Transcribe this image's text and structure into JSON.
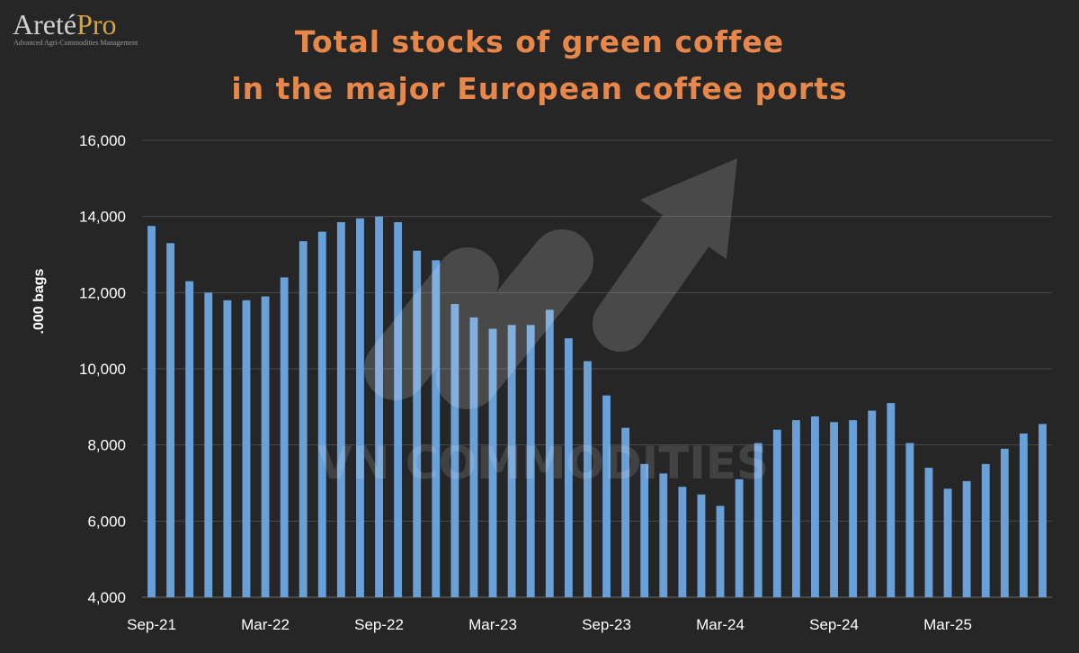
{
  "logo": {
    "brand_main": "Areté",
    "brand_pro": "Pro",
    "tagline": "Advanced Agri-Commodities Management",
    "pro_color": "#d9a441"
  },
  "watermark": {
    "text": "VN COMMODITIES"
  },
  "colors": {
    "background": "#262626",
    "title": "#e8874a",
    "bar": "#6aa0d8",
    "grid": "#4a4a4a"
  },
  "chart_data": {
    "type": "bar",
    "title_lines": [
      "Total stocks of green coffee",
      "in the major European coffee ports"
    ],
    "ylabel": ".000 bags",
    "xlabel": "",
    "ylim": [
      4000,
      16000
    ],
    "yticks": [
      "4,000",
      "6,000",
      "8,000",
      "10,000",
      "12,000",
      "14,000",
      "16,000"
    ],
    "ytick_values": [
      4000,
      6000,
      8000,
      10000,
      12000,
      14000,
      16000
    ],
    "xtick_labels": [
      {
        "label": "Sep-21",
        "index": 0
      },
      {
        "label": "Mar-22",
        "index": 6
      },
      {
        "label": "Sep-22",
        "index": 12
      },
      {
        "label": "Mar-23",
        "index": 18
      },
      {
        "label": "Sep-23",
        "index": 24
      },
      {
        "label": "Mar-24",
        "index": 30
      },
      {
        "label": "Sep-24",
        "index": 36
      },
      {
        "label": "Mar-25",
        "index": 42
      }
    ],
    "grid": true,
    "values": [
      13750,
      13300,
      12300,
      12000,
      11800,
      11800,
      11900,
      12400,
      13350,
      13600,
      13850,
      13950,
      14000,
      13850,
      13100,
      12850,
      11700,
      11350,
      11050,
      11150,
      11150,
      11550,
      10800,
      10200,
      9300,
      8450,
      7500,
      7250,
      6900,
      6700,
      6400,
      7100,
      8050,
      8400,
      8650,
      8750,
      8600,
      8650,
      8900,
      9100,
      8050,
      7400,
      6850,
      7050,
      7500,
      7900,
      8300,
      8550
    ]
  }
}
